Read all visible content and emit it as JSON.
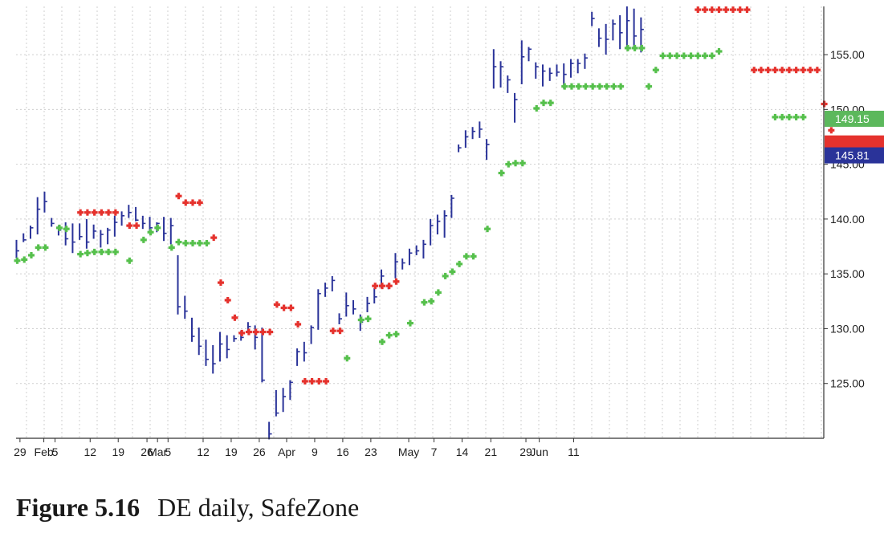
{
  "caption": {
    "label": "Figure 5.16",
    "text": "DE daily, SafeZone"
  },
  "chart_data": {
    "type": "bar",
    "title": "",
    "xlabel": "",
    "ylabel": "",
    "ylim": [
      120.0,
      159.4
    ],
    "y_ticks": [
      125,
      130,
      135,
      140,
      145,
      150,
      155
    ],
    "y_tick_labels": [
      "125.00",
      "130.00",
      "135.00",
      "140.00",
      "145.00",
      "150.00",
      "155.00"
    ],
    "grid": true,
    "x_tick_labels": [
      {
        "label": "29",
        "bar": 0.5
      },
      {
        "label": "Feb",
        "bar": 3.9
      },
      {
        "label": "5",
        "bar": 5.5
      },
      {
        "label": "12",
        "bar": 10.5
      },
      {
        "label": "19",
        "bar": 14.5
      },
      {
        "label": "26",
        "bar": 18.6
      },
      {
        "label": "Mar",
        "bar": 20.1
      },
      {
        "label": "5",
        "bar": 21.6
      },
      {
        "label": "12",
        "bar": 26.6
      },
      {
        "label": "19",
        "bar": 30.6
      },
      {
        "label": "26",
        "bar": 34.6
      },
      {
        "label": "Apr",
        "bar": 38.5
      },
      {
        "label": "9",
        "bar": 42.5
      },
      {
        "label": "16",
        "bar": 46.5
      },
      {
        "label": "23",
        "bar": 50.5
      },
      {
        "label": "May",
        "bar": 55.9
      },
      {
        "label": "7",
        "bar": 59.5
      },
      {
        "label": "14",
        "bar": 63.5
      },
      {
        "label": "21",
        "bar": 67.6
      },
      {
        "label": "29",
        "bar": 72.6
      },
      {
        "label": "Jun",
        "bar": 74.5
      },
      {
        "label": "11",
        "bar": 79.4
      }
    ],
    "price_badges": [
      {
        "label": "149.15",
        "value": 149.15,
        "color": "#5cb85c"
      },
      {
        "label": "145.81",
        "value": 145.81,
        "color": "#2a3399"
      }
    ],
    "hidden_badge": {
      "value": 146.9,
      "color": "#e5322d"
    },
    "colors": {
      "bars": "#2a3399",
      "long_stop": "#56c04c",
      "short_stop": "#e5322d",
      "grid": "#cfcfcf",
      "axis": "#333333"
    },
    "series": [
      {
        "name": "",
        "kind": "ohlc",
        "values": [
          [
            138.1,
            136.4,
            137.1
          ],
          [
            138.7,
            137.9,
            138.1
          ],
          [
            139.4,
            138.2,
            139.2
          ],
          [
            142.0,
            138.6,
            140.9
          ],
          [
            142.5,
            140.6,
            141.6
          ],
          [
            140.1,
            139.3,
            139.6
          ],
          [
            139.4,
            138.5,
            139.0
          ],
          [
            139.7,
            137.6,
            138.2
          ],
          [
            139.6,
            136.9,
            137.9
          ],
          [
            139.6,
            138.1,
            138.4
          ],
          [
            140.0,
            137.3,
            137.9
          ],
          [
            139.5,
            138.2,
            138.9
          ],
          [
            139.0,
            137.4,
            138.6
          ],
          [
            139.2,
            137.7,
            139.0
          ],
          [
            140.3,
            138.4,
            139.7
          ],
          [
            140.7,
            139.4,
            140.3
          ],
          [
            141.3,
            140.1,
            140.6
          ],
          [
            141.1,
            139.8,
            139.9
          ],
          [
            140.3,
            139.1,
            139.6
          ],
          [
            140.2,
            138.7,
            139.2
          ],
          [
            139.7,
            138.8,
            139.6
          ],
          [
            140.2,
            138.0,
            138.7
          ],
          [
            140.1,
            137.7,
            139.4
          ],
          [
            136.7,
            131.3,
            132.0
          ],
          [
            133.0,
            130.9,
            131.6
          ],
          [
            131.0,
            128.8,
            129.3
          ],
          [
            130.1,
            127.6,
            128.4
          ],
          [
            129.0,
            126.6,
            127.2
          ],
          [
            128.5,
            125.9,
            126.8
          ],
          [
            129.7,
            127.0,
            128.6
          ],
          [
            129.4,
            127.3,
            128.1
          ],
          [
            129.4,
            128.8,
            129.1
          ],
          [
            129.8,
            128.9,
            129.2
          ],
          [
            130.6,
            129.6,
            130.2
          ],
          [
            130.3,
            128.1,
            129.2
          ],
          [
            130.1,
            125.1,
            125.3
          ],
          [
            121.5,
            119.9,
            120.4
          ],
          [
            124.4,
            122.0,
            122.3
          ],
          [
            124.6,
            122.4,
            123.8
          ],
          [
            125.3,
            123.5,
            125.1
          ],
          [
            128.2,
            126.6,
            127.9
          ],
          [
            128.8,
            127.0,
            127.8
          ],
          [
            130.3,
            128.6,
            130.1
          ],
          [
            133.6,
            129.9,
            133.2
          ],
          [
            134.2,
            132.9,
            133.7
          ],
          [
            134.8,
            133.4,
            134.4
          ],
          [
            131.4,
            130.4,
            130.9
          ],
          [
            133.3,
            131.1,
            132.1
          ],
          [
            132.6,
            131.3,
            131.8
          ],
          [
            131.3,
            129.8,
            130.6
          ],
          [
            132.9,
            131.5,
            132.3
          ],
          [
            133.7,
            132.3,
            132.9
          ],
          [
            135.4,
            133.7,
            134.8
          ],
          [
            134.1,
            133.6,
            133.9
          ],
          [
            136.9,
            134.6,
            136.1
          ],
          [
            136.4,
            135.4,
            136.0
          ],
          [
            137.3,
            135.8,
            136.9
          ],
          [
            137.6,
            136.7,
            137.1
          ],
          [
            138.1,
            136.4,
            137.7
          ],
          [
            140.0,
            137.6,
            139.4
          ],
          [
            140.4,
            138.6,
            139.8
          ],
          [
            140.8,
            138.3,
            140.3
          ],
          [
            142.2,
            140.1,
            141.9
          ],
          [
            146.8,
            146.1,
            146.5
          ],
          [
            148.1,
            146.5,
            147.5
          ],
          [
            148.4,
            147.3,
            148.0
          ],
          [
            148.9,
            147.4,
            148.2
          ],
          [
            147.3,
            145.4,
            146.8
          ],
          [
            155.5,
            151.9,
            153.9
          ],
          [
            154.4,
            152.0,
            153.9
          ],
          [
            153.1,
            151.5,
            152.7
          ],
          [
            151.5,
            148.8,
            150.9
          ],
          [
            156.3,
            152.3,
            154.8
          ],
          [
            155.7,
            154.4,
            155.5
          ],
          [
            154.3,
            152.8,
            153.9
          ],
          [
            154.1,
            152.1,
            153.5
          ],
          [
            153.8,
            152.6,
            153.3
          ],
          [
            154.1,
            153.0,
            153.4
          ],
          [
            154.2,
            151.9,
            153.2
          ],
          [
            154.6,
            152.9,
            154.2
          ],
          [
            154.6,
            153.3,
            154.2
          ],
          [
            155.1,
            153.7,
            154.7
          ],
          [
            158.9,
            157.6,
            158.3
          ],
          [
            157.4,
            155.7,
            156.5
          ],
          [
            157.8,
            155.0,
            156.4
          ],
          [
            158.2,
            156.3,
            157.8
          ],
          [
            158.6,
            155.5,
            157.0
          ],
          [
            159.4,
            155.7,
            158.1
          ],
          [
            159.2,
            155.6,
            156.7
          ],
          [
            158.4,
            155.2,
            157.3
          ]
        ]
      },
      {
        "name": "",
        "kind": "stop",
        "color_key": "long_stop",
        "points": [
          [
            0,
            136.2
          ],
          [
            1,
            136.3
          ],
          [
            2,
            136.7
          ],
          [
            3,
            137.4
          ],
          [
            4,
            137.4
          ],
          [
            6,
            139.2
          ],
          [
            7,
            139.1
          ],
          [
            9,
            136.8
          ],
          [
            10,
            136.9
          ],
          [
            11,
            137.0
          ],
          [
            12,
            137.0
          ],
          [
            13,
            137.0
          ],
          [
            14,
            137.0
          ],
          [
            16,
            136.2
          ],
          [
            18,
            138.1
          ],
          [
            19,
            138.8
          ],
          [
            20,
            139.2
          ],
          [
            22,
            137.4
          ],
          [
            23,
            137.9
          ],
          [
            24,
            137.8
          ],
          [
            25,
            137.8
          ],
          [
            26,
            137.8
          ],
          [
            27,
            137.8
          ],
          [
            47,
            127.3
          ],
          [
            49,
            130.8
          ],
          [
            50,
            130.9
          ],
          [
            52,
            128.8
          ],
          [
            53,
            129.4
          ],
          [
            54,
            129.5
          ],
          [
            56,
            130.5
          ],
          [
            58,
            132.4
          ],
          [
            59,
            132.5
          ],
          [
            60,
            133.3
          ],
          [
            61,
            134.8
          ],
          [
            62,
            135.2
          ],
          [
            63,
            135.9
          ],
          [
            64,
            136.6
          ],
          [
            65,
            136.6
          ],
          [
            67,
            139.1
          ],
          [
            69,
            144.2
          ],
          [
            70,
            145.0
          ],
          [
            71,
            145.1
          ],
          [
            72,
            145.1
          ],
          [
            74,
            150.1
          ],
          [
            75,
            150.6
          ],
          [
            76,
            150.6
          ],
          [
            78,
            152.1
          ],
          [
            79,
            152.1
          ],
          [
            80,
            152.1
          ],
          [
            81,
            152.1
          ],
          [
            82,
            152.1
          ],
          [
            83,
            152.1
          ],
          [
            84,
            152.1
          ],
          [
            85,
            152.1
          ],
          [
            86,
            152.1
          ],
          [
            87,
            155.6
          ],
          [
            88,
            155.6
          ],
          [
            89,
            155.6
          ],
          [
            90,
            152.1
          ],
          [
            91,
            153.6
          ],
          [
            92,
            154.9
          ],
          [
            93,
            154.9
          ],
          [
            94,
            154.9
          ],
          [
            95,
            154.9
          ],
          [
            96,
            154.9
          ],
          [
            97,
            154.9
          ],
          [
            98,
            154.9
          ],
          [
            99,
            154.9
          ],
          [
            100,
            155.3
          ],
          [
            108,
            149.3
          ],
          [
            109,
            149.3
          ],
          [
            110,
            149.3
          ],
          [
            111,
            149.3
          ],
          [
            112,
            149.3
          ]
        ]
      },
      {
        "name": "",
        "kind": "stop",
        "color_key": "short_stop",
        "points": [
          [
            9,
            140.6
          ],
          [
            10,
            140.6
          ],
          [
            11,
            140.6
          ],
          [
            12,
            140.6
          ],
          [
            13,
            140.6
          ],
          [
            14,
            140.6
          ],
          [
            16,
            139.4
          ],
          [
            17,
            139.4
          ],
          [
            23,
            142.1
          ],
          [
            24,
            141.5
          ],
          [
            25,
            141.5
          ],
          [
            26,
            141.5
          ],
          [
            28,
            138.3
          ],
          [
            29,
            134.2
          ],
          [
            30,
            132.6
          ],
          [
            31,
            131.0
          ],
          [
            32,
            129.6
          ],
          [
            33,
            129.7
          ],
          [
            34,
            129.7
          ],
          [
            35,
            129.7
          ],
          [
            36,
            129.7
          ],
          [
            37,
            132.2
          ],
          [
            38,
            131.9
          ],
          [
            39,
            131.9
          ],
          [
            40,
            130.4
          ],
          [
            41,
            125.2
          ],
          [
            42,
            125.2
          ],
          [
            43,
            125.2
          ],
          [
            44,
            125.2
          ],
          [
            45,
            129.8
          ],
          [
            46,
            129.8
          ],
          [
            51,
            133.9
          ],
          [
            52,
            133.9
          ],
          [
            53,
            133.9
          ],
          [
            54,
            134.3
          ],
          [
            97,
            159.1
          ],
          [
            98,
            159.1
          ],
          [
            99,
            159.1
          ],
          [
            100,
            159.1
          ],
          [
            101,
            159.1
          ],
          [
            102,
            159.1
          ],
          [
            103,
            159.1
          ],
          [
            104,
            159.1
          ],
          [
            105,
            153.6
          ],
          [
            106,
            153.6
          ],
          [
            107,
            153.6
          ],
          [
            108,
            153.6
          ],
          [
            109,
            153.6
          ],
          [
            110,
            153.6
          ],
          [
            111,
            153.6
          ],
          [
            112,
            153.6
          ],
          [
            113,
            153.6
          ],
          [
            114,
            153.6
          ],
          [
            115,
            150.5
          ],
          [
            116,
            148.1
          ],
          [
            117,
            146.1
          ]
        ]
      }
    ]
  }
}
